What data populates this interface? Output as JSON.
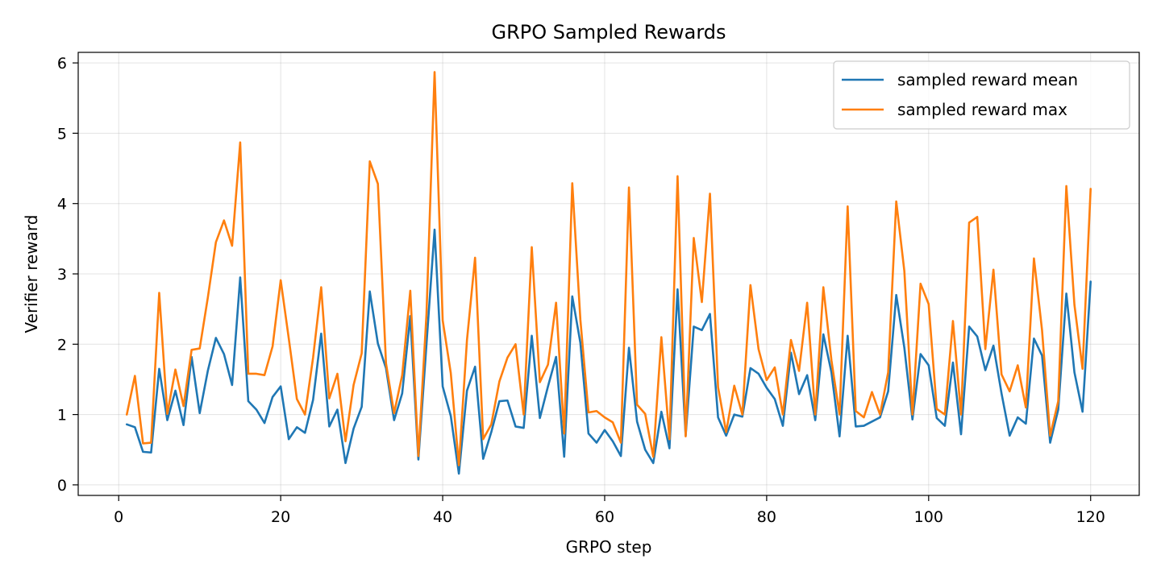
{
  "chart_data": {
    "type": "line",
    "title": "GRPO Sampled Rewards",
    "xlabel": "GRPO step",
    "ylabel": "Verifier reward",
    "xlim": [
      -5,
      126
    ],
    "ylim": [
      -0.15,
      6.15
    ],
    "xticks": [
      0,
      20,
      40,
      60,
      80,
      100,
      120
    ],
    "yticks": [
      0,
      1,
      2,
      3,
      4,
      5,
      6
    ],
    "grid": true,
    "legend_position": "top-right",
    "x_start": 1,
    "series": [
      {
        "name": "sampled reward mean",
        "color": "#1f77b4",
        "values": [
          0.86,
          0.82,
          0.47,
          0.46,
          1.65,
          0.92,
          1.34,
          0.85,
          1.82,
          1.02,
          1.62,
          2.09,
          1.86,
          1.42,
          2.95,
          1.19,
          1.07,
          0.88,
          1.25,
          1.4,
          0.65,
          0.82,
          0.74,
          1.21,
          2.15,
          0.83,
          1.07,
          0.31,
          0.8,
          1.11,
          2.75,
          2.01,
          1.66,
          0.92,
          1.3,
          2.4,
          0.36,
          2.0,
          3.63,
          1.4,
          0.98,
          0.16,
          1.34,
          1.68,
          0.37,
          0.75,
          1.19,
          1.2,
          0.83,
          0.81,
          2.12,
          0.95,
          1.4,
          1.82,
          0.4,
          2.68,
          2.02,
          0.73,
          0.6,
          0.78,
          0.62,
          0.41,
          1.95,
          0.9,
          0.5,
          0.31,
          1.04,
          0.52,
          2.78,
          0.7,
          2.25,
          2.2,
          2.43,
          0.96,
          0.7,
          1.0,
          0.97,
          1.66,
          1.58,
          1.38,
          1.22,
          0.84,
          1.88,
          1.29,
          1.56,
          0.92,
          2.14,
          1.6,
          0.69,
          2.12,
          0.83,
          0.84,
          0.9,
          0.96,
          1.33,
          2.7,
          1.95,
          0.93,
          1.86,
          1.7,
          0.95,
          0.84,
          1.74,
          0.72,
          2.25,
          2.11,
          1.63,
          1.98,
          1.3,
          0.7,
          0.96,
          0.87,
          2.08,
          1.84,
          0.6,
          1.07,
          2.72,
          1.6,
          1.04,
          2.89
        ]
      },
      {
        "name": "sampled reward max",
        "color": "#ff7f0e",
        "values": [
          1.0,
          1.55,
          0.59,
          0.6,
          2.73,
          1.01,
          1.64,
          1.12,
          1.92,
          1.94,
          2.66,
          3.45,
          3.76,
          3.4,
          4.87,
          1.58,
          1.58,
          1.56,
          1.97,
          2.91,
          2.08,
          1.22,
          1.0,
          1.81,
          2.81,
          1.23,
          1.58,
          0.62,
          1.42,
          1.87,
          4.6,
          4.28,
          1.73,
          1.02,
          1.56,
          2.76,
          0.41,
          2.43,
          5.87,
          2.34,
          1.59,
          0.28,
          2.06,
          3.23,
          0.65,
          0.86,
          1.47,
          1.81,
          2.0,
          1.0,
          3.38,
          1.46,
          1.71,
          2.59,
          0.73,
          4.29,
          2.35,
          1.03,
          1.05,
          0.96,
          0.89,
          0.6,
          4.23,
          1.14,
          1.01,
          0.4,
          2.1,
          0.65,
          4.39,
          0.69,
          3.51,
          2.6,
          4.14,
          1.39,
          0.75,
          1.41,
          1.0,
          2.84,
          1.93,
          1.49,
          1.67,
          1.0,
          2.06,
          1.62,
          2.59,
          1.0,
          2.81,
          1.77,
          1.0,
          3.96,
          1.05,
          0.96,
          1.32,
          1.0,
          1.6,
          4.03,
          3.04,
          1.0,
          2.86,
          2.57,
          1.08,
          1.0,
          2.33,
          1.0,
          3.73,
          3.81,
          1.93,
          3.06,
          1.57,
          1.33,
          1.7,
          1.1,
          3.22,
          2.2,
          0.7,
          1.19,
          4.25,
          2.56,
          1.65,
          4.21
        ]
      }
    ]
  }
}
